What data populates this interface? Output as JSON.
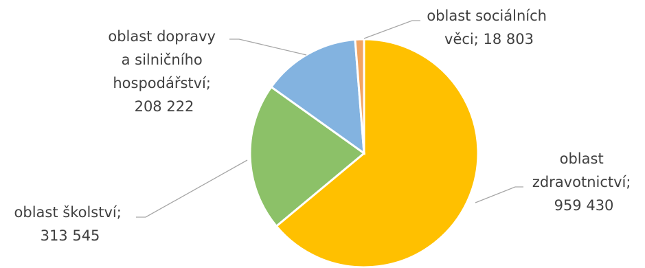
{
  "chart_data": {
    "type": "pie",
    "title": "",
    "start_angle_deg": 0,
    "direction": "clockwise",
    "slices": [
      {
        "name": "oblast zdravotnictví",
        "value": 959430,
        "value_label": "959 430",
        "color": "#FFC000",
        "label_lines": [
          "oblast",
          "zdravotnictví;",
          "959 430"
        ]
      },
      {
        "name": "oblast školství",
        "value": 313545,
        "value_label": "313 545",
        "color": "#8CC168",
        "label_lines": [
          "oblast školství;",
          "313 545"
        ]
      },
      {
        "name": "oblast dopravy a silničního hospodářství",
        "value": 208222,
        "value_label": "208 222",
        "color": "#83B3E0",
        "label_lines": [
          "oblast dopravy",
          "a silničního",
          "hospodářství;",
          "208 222"
        ]
      },
      {
        "name": "oblast sociálních věci",
        "value": 18803,
        "value_label": "18 803",
        "color": "#F2A462",
        "label_lines": [
          "oblast sociálních",
          "věci; 18 803"
        ]
      }
    ]
  }
}
